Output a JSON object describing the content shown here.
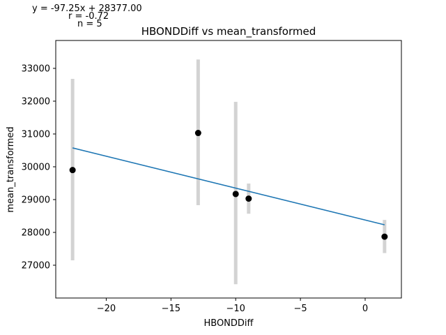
{
  "chart_data": {
    "type": "scatter",
    "title": "HBONDDiff vs mean_transformed",
    "xlabel": "HBONDDiff",
    "ylabel": "mean_transformed",
    "xlim": [
      -23.9,
      2.8
    ],
    "ylim": [
      26000,
      33850
    ],
    "xticks": [
      -20,
      -15,
      -10,
      -5,
      0
    ],
    "xtick_labels": [
      "−20",
      "−15",
      "−10",
      "−5",
      "0"
    ],
    "yticks": [
      27000,
      28000,
      29000,
      30000,
      31000,
      32000,
      33000
    ],
    "ytick_labels": [
      "27000",
      "28000",
      "29000",
      "30000",
      "31000",
      "32000",
      "33000"
    ],
    "grid": false,
    "points": [
      {
        "x": -22.6,
        "y": 29900,
        "err_low": 27150,
        "err_high": 32680
      },
      {
        "x": -12.9,
        "y": 31030,
        "err_low": 28830,
        "err_high": 33270
      },
      {
        "x": -10.0,
        "y": 29170,
        "err_low": 26420,
        "err_high": 31980
      },
      {
        "x": -9.0,
        "y": 29030,
        "err_low": 28570,
        "err_high": 29490
      },
      {
        "x": 1.5,
        "y": 27870,
        "err_low": 27370,
        "err_high": 28380
      }
    ],
    "fit": {
      "slope": -97.25,
      "intercept": 28377.0,
      "x_range": [
        -22.6,
        1.5
      ]
    },
    "colors": {
      "points": "#000000",
      "errorbars": "#d3d3d3",
      "fit": "#1f77b4"
    },
    "annotation_lines": [
      "y = -97.25x + 28377.00",
      "r = -0.72",
      "n = 5"
    ]
  }
}
